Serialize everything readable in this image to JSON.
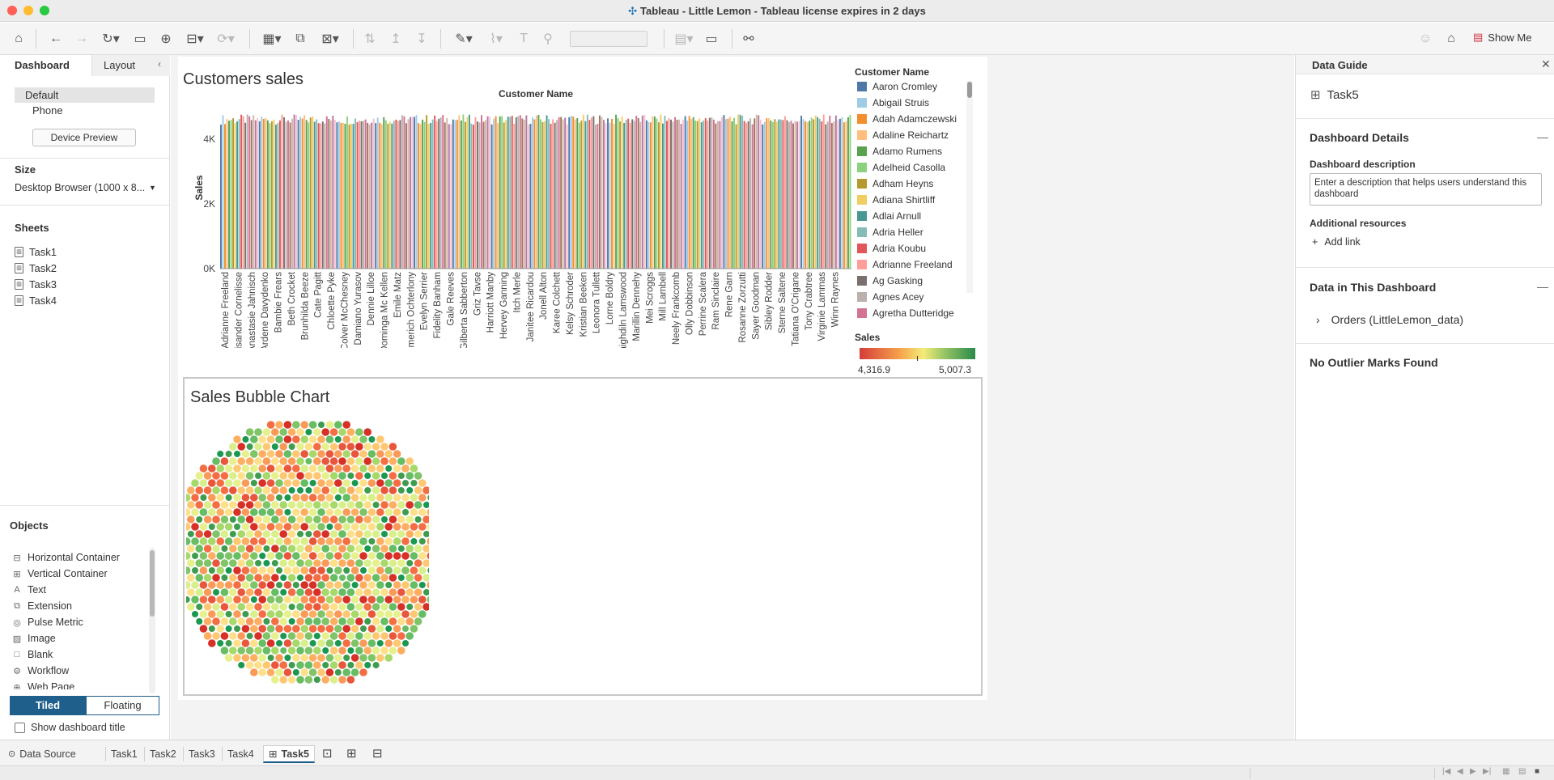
{
  "window": {
    "title": "Tableau - Little Lemon - Tableau license expires in 2 days"
  },
  "toolbar": {
    "show_me_label": "Show Me"
  },
  "left_panel": {
    "tabs": {
      "dashboard": "Dashboard",
      "layout": "Layout"
    },
    "devices": {
      "default": "Default",
      "phone": "Phone",
      "preview_button": "Device Preview"
    },
    "size": {
      "title": "Size",
      "value": "Desktop Browser (1000 x 8..."
    },
    "sheets": {
      "title": "Sheets",
      "items": [
        "Task1",
        "Task2",
        "Task3",
        "Task4"
      ]
    },
    "objects": {
      "title": "Objects",
      "items": [
        "Horizontal Container",
        "Vertical Container",
        "Text",
        "Extension",
        "Pulse Metric",
        "Image",
        "Blank",
        "Workflow",
        "Web Page"
      ],
      "tiled": "Tiled",
      "floating": "Floating",
      "show_title": "Show dashboard title"
    }
  },
  "dashboard": {
    "bar_chart_title": "Customers sales",
    "bubble_chart_title": "Sales Bubble Chart",
    "legend": {
      "title": "Customer Name",
      "items": [
        {
          "name": "Aaron Cromley",
          "color": "#4e79a7"
        },
        {
          "name": "Abigail Struis",
          "color": "#a0cbe8"
        },
        {
          "name": "Adah Adamczewski",
          "color": "#f28e2b"
        },
        {
          "name": "Adaline Reichartz",
          "color": "#ffbe7d"
        },
        {
          "name": "Adamo Rumens",
          "color": "#59a14f"
        },
        {
          "name": "Adelheid Casolla",
          "color": "#8cd17d"
        },
        {
          "name": "Adham Heyns",
          "color": "#b6992d"
        },
        {
          "name": "Adiana Shirtliff",
          "color": "#f1ce63"
        },
        {
          "name": "Adlai Arnull",
          "color": "#499894"
        },
        {
          "name": "Adria Heller",
          "color": "#86bcb6"
        },
        {
          "name": "Adria Koubu",
          "color": "#e15759"
        },
        {
          "name": "Adrianne Freeland",
          "color": "#ff9d9a"
        },
        {
          "name": "Ag Gasking",
          "color": "#79706e"
        },
        {
          "name": "Agnes Acey",
          "color": "#bab0ac"
        },
        {
          "name": "Agretha Dutteridge",
          "color": "#d37295"
        }
      ],
      "sales_title": "Sales",
      "sales_min": "4,316.9",
      "sales_max": "5,007.3"
    }
  },
  "chart_data": [
    {
      "type": "bar",
      "title": "Customers sales",
      "xlabel": "Customer Name",
      "ylabel": "Sales",
      "ylim": [
        0,
        5000
      ],
      "yticks": [
        "0K",
        "2K",
        "4K"
      ],
      "visible_category_labels": [
        "Adrianne Freeland",
        "Alisander Cornelisse",
        "Anastasie Jahnisch",
        "Ardene Davydenko",
        "Bambie Frears",
        "Beth Crocket",
        "Brunhilda Beeze",
        "Cate Pagitt",
        "Chloette Pyke",
        "Colver McChesney",
        "Damiano Yurasov",
        "Dennie Lilloe",
        "Dominga Mc Kellen",
        "Emile Matz",
        "Emmerich Ochterlony",
        "Evelyn Serrier",
        "Fidelity Banham",
        "Gale Reeves",
        "Gilberta Sabberton",
        "Griz Tavse",
        "Harriott Manby",
        "Hervey Ganning",
        "Itch Merle",
        "Janitee Ricardou",
        "Jonell Alton",
        "Karee Colchett",
        "Kelsy Schroder",
        "Kristian Beeken",
        "Leonora Tullett",
        "Lorne Boldry",
        "Maighdiln Lamswood",
        "Marillin Dennehy",
        "Mei Scroggs",
        "Mill Lambell",
        "Neely Frankcomb",
        "Olly Dobbinson",
        "Perrine Scalera",
        "Ram Sinclaire",
        "Rene Garn",
        "Rosanne Zorzutti",
        "Sayer Goodman",
        "Sibley Rodder",
        "Sterne Saltene",
        "Tatiana O'Crigane",
        "Tony Crabtree",
        "Virginie Lammas",
        "Winn Raynes"
      ],
      "approx_value_range": [
        4300,
        5000
      ]
    },
    {
      "type": "scatter",
      "title": "Sales Bubble Chart",
      "encoding": "packed bubbles, color by Sales",
      "color_range": [
        4316.9,
        5007.3
      ]
    }
  ],
  "data_guide": {
    "title": "Data Guide",
    "sheet_name": "Task5",
    "details_title": "Dashboard Details",
    "description_label": "Dashboard description",
    "description_placeholder": "Enter a description that helps users understand this dashboard",
    "resources_label": "Additional resources",
    "add_link": "Add link",
    "data_title": "Data in This Dashboard",
    "data_source": "Orders (LittleLemon_data)",
    "outliers": "No Outlier Marks Found"
  },
  "bottom_tabs": {
    "data_source": "Data Source",
    "sheets": [
      "Task1",
      "Task2",
      "Task3",
      "Task4"
    ],
    "active": "Task5"
  }
}
